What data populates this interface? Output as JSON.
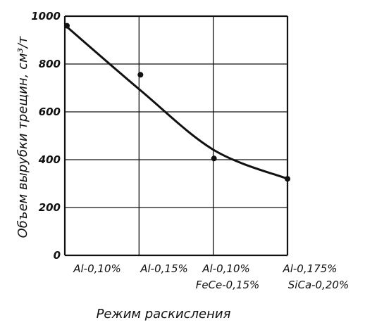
{
  "chart_data": {
    "type": "line",
    "title": "",
    "xlabel": "Режим раскисления",
    "ylabel": "Объем вырубки трещин, см³/т",
    "ylim": [
      0,
      1000
    ],
    "yticks": [
      "0",
      "200",
      "400",
      "600",
      "800",
      "1000"
    ],
    "grid": true,
    "categories": [
      {
        "line1": "Al-0,10%",
        "line2": ""
      },
      {
        "line1": "Al-0,15%",
        "line2": ""
      },
      {
        "line1": "Al-0,10%",
        "line2": "FeCe-0,15%"
      },
      {
        "line1": "Al-0,175%",
        "line2": "SiCa-0,20%"
      }
    ],
    "series": [
      {
        "points": [
          960,
          755,
          405,
          320
        ],
        "curve": [
          955,
          690,
          440,
          320
        ]
      }
    ],
    "colors": {
      "ink": "#111111",
      "background": "#ffffff"
    }
  }
}
